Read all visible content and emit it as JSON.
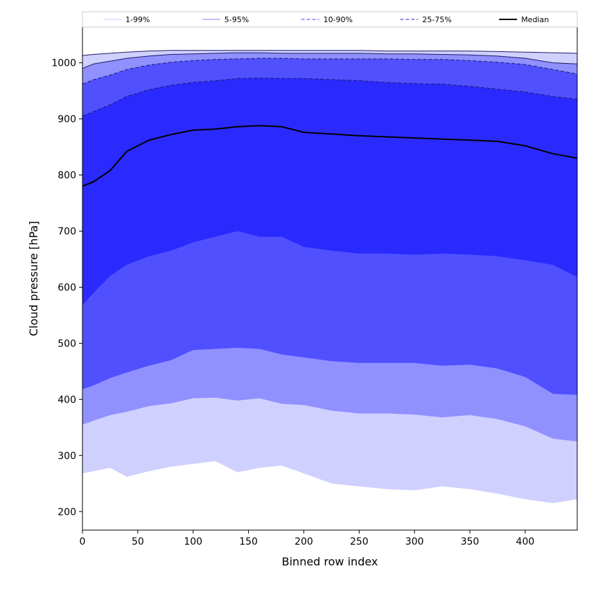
{
  "chart_data": {
    "type": "area",
    "title": "",
    "xlabel": "Binned row index",
    "ylabel": "Cloud pressure [hPa]",
    "xlim": [
      0,
      447
    ],
    "ylim": [
      167,
      1065
    ],
    "grid": false,
    "legend_placement": "top",
    "x_ticks": [
      0,
      50,
      100,
      150,
      200,
      250,
      300,
      350,
      400
    ],
    "y_ticks": [
      200,
      300,
      400,
      500,
      600,
      700,
      800,
      900,
      1000
    ],
    "x": [
      0,
      10,
      25,
      40,
      60,
      80,
      100,
      120,
      140,
      160,
      180,
      200,
      225,
      250,
      275,
      300,
      325,
      350,
      375,
      400,
      425,
      447
    ],
    "bands": [
      {
        "name": "1-99%",
        "fill": "#d0d0ff",
        "line_color": "#c8c8ff",
        "line_style": "solid",
        "lower": [
          268,
          272,
          278,
          262,
          272,
          280,
          285,
          290,
          270,
          278,
          282,
          268,
          250,
          245,
          240,
          238,
          245,
          240,
          232,
          222,
          215,
          222
        ],
        "upper": [
          1013,
          1015,
          1017,
          1019,
          1021,
          1022,
          1022,
          1022,
          1022,
          1022,
          1022,
          1022,
          1022,
          1022,
          1021,
          1021,
          1021,
          1021,
          1020,
          1019,
          1018,
          1017
        ]
      },
      {
        "name": "5-95%",
        "fill": "#9090ff",
        "line_color": "#8080ff",
        "line_style": "solid",
        "lower": [
          355,
          362,
          372,
          378,
          388,
          393,
          402,
          403,
          398,
          402,
          392,
          390,
          380,
          375,
          375,
          373,
          368,
          372,
          365,
          352,
          330,
          325
        ],
        "upper": [
          990,
          998,
          1003,
          1008,
          1012,
          1015,
          1016,
          1017,
          1018,
          1018,
          1017,
          1017,
          1017,
          1017,
          1016,
          1016,
          1015,
          1014,
          1012,
          1008,
          1000,
          998
        ]
      },
      {
        "name": "10-90%",
        "fill": "#5050ff",
        "line_color": "#4040ff",
        "line_style": "dashed",
        "lower": [
          418,
          425,
          438,
          448,
          460,
          470,
          488,
          490,
          492,
          490,
          480,
          475,
          468,
          465,
          465,
          465,
          460,
          462,
          455,
          440,
          410,
          408
        ],
        "upper": [
          962,
          970,
          978,
          988,
          996,
          1001,
          1004,
          1006,
          1007,
          1008,
          1008,
          1007,
          1007,
          1007,
          1007,
          1006,
          1006,
          1004,
          1001,
          997,
          988,
          980
        ]
      },
      {
        "name": "25-75%",
        "fill": "#2a2aff",
        "line_color": "#2020c8",
        "line_style": "dashed",
        "lower": [
          568,
          590,
          620,
          640,
          655,
          665,
          680,
          690,
          700,
          690,
          690,
          672,
          665,
          660,
          660,
          658,
          660,
          658,
          655,
          648,
          640,
          618
        ],
        "upper": [
          905,
          913,
          925,
          940,
          952,
          960,
          965,
          968,
          972,
          973,
          972,
          972,
          970,
          968,
          965,
          963,
          962,
          958,
          953,
          948,
          940,
          935
        ]
      }
    ],
    "median": {
      "name": "Median",
      "color": "#000000",
      "values": [
        780,
        788,
        808,
        842,
        862,
        872,
        880,
        882,
        886,
        888,
        886,
        876,
        873,
        870,
        868,
        866,
        864,
        862,
        860,
        852,
        838,
        830
      ]
    },
    "legend": [
      "1-99%",
      "5-95%",
      "10-90%",
      "25-75%",
      "Median"
    ]
  }
}
